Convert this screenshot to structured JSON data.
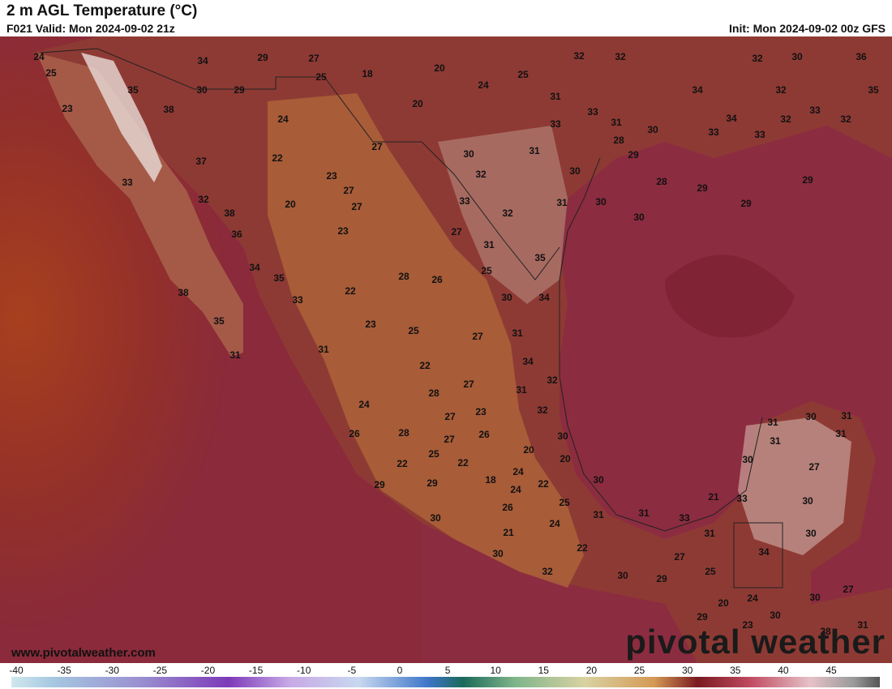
{
  "header": {
    "title": "2 m AGL Temperature (°C)",
    "valid": "F021 Valid: Mon 2024-09-02 21z",
    "init": "Init: Mon 2024-09-02 00z GFS"
  },
  "map": {
    "labels": [
      24,
      25,
      23,
      34,
      29,
      27,
      18,
      20,
      25,
      24,
      25,
      32,
      32,
      32,
      30,
      36,
      35,
      38,
      30,
      29,
      20,
      31,
      33,
      34,
      32,
      35,
      33,
      24,
      31,
      33,
      30,
      33,
      34,
      32,
      33,
      32,
      27,
      28,
      29,
      31,
      30,
      22,
      37,
      23,
      32,
      30,
      33,
      27,
      28,
      29,
      29,
      32,
      20,
      27,
      33,
      31,
      30,
      29,
      38,
      32,
      30,
      23,
      27,
      36,
      31,
      35,
      34,
      35,
      28,
      26,
      25,
      22,
      38,
      33,
      30,
      34,
      23,
      25,
      27,
      31,
      35,
      31,
      31,
      34,
      22,
      32,
      27,
      28,
      31,
      24,
      23,
      27,
      32,
      31,
      30,
      31,
      31,
      28,
      26,
      27,
      26,
      30,
      31,
      20,
      25,
      22,
      20,
      22,
      30,
      27,
      24,
      18,
      29,
      29,
      24,
      22,
      30,
      21,
      33,
      25,
      26,
      30,
      31,
      31,
      33,
      30,
      24,
      21,
      31,
      30,
      22,
      34,
      27,
      30,
      32,
      25,
      30,
      29,
      20,
      24,
      30,
      27,
      30,
      29,
      23,
      31,
      28
    ]
  },
  "footer": {
    "website": "www.pivotalweather.com",
    "logo": "pivotal weather"
  },
  "colorbar": {
    "ticks": [
      -40,
      -35,
      -30,
      -25,
      -20,
      -15,
      -10,
      -5,
      0,
      5,
      10,
      15,
      20,
      25,
      30,
      35,
      40,
      45
    ]
  }
}
